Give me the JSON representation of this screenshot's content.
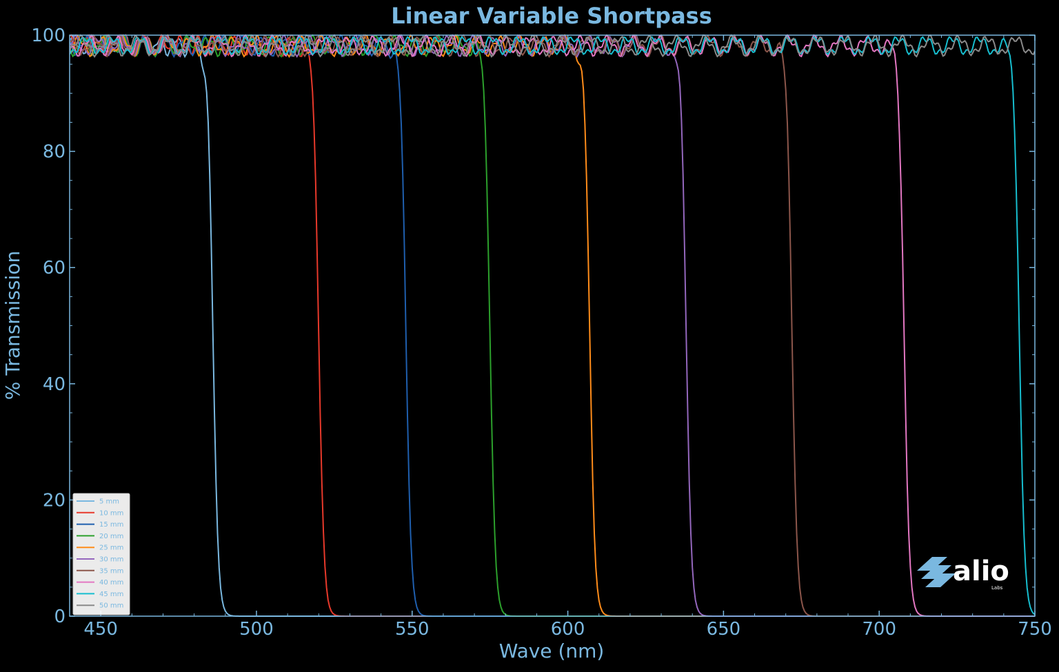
{
  "chart_data": {
    "type": "line",
    "title": "Linear Variable Shortpass",
    "xlabel": "Wave (nm)",
    "ylabel": "% Transmission",
    "xlim": [
      440,
      750
    ],
    "ylim": [
      0,
      100
    ],
    "xticks": [
      450,
      500,
      550,
      600,
      650,
      700,
      750
    ],
    "yticks": [
      0,
      20,
      40,
      60,
      80,
      100
    ],
    "legend_position": "lower-left",
    "grid": false,
    "series": [
      {
        "name": "5 mm",
        "color": "#7ab8e0",
        "edge_nm": 486,
        "last_nm": 750
      },
      {
        "name": "10 mm",
        "color": "#e8392b",
        "edge_nm": 520,
        "last_nm": 750
      },
      {
        "name": "15 mm",
        "color": "#1f5fae",
        "edge_nm": 548,
        "last_nm": 750
      },
      {
        "name": "20 mm",
        "color": "#2ca02c",
        "edge_nm": 575,
        "last_nm": 750
      },
      {
        "name": "25 mm",
        "color": "#ff8c1a",
        "edge_nm": 607,
        "last_nm": 750
      },
      {
        "name": "30 mm",
        "color": "#9467bd",
        "edge_nm": 638,
        "last_nm": 750
      },
      {
        "name": "35 mm",
        "color": "#8c564b",
        "edge_nm": 672,
        "last_nm": 750
      },
      {
        "name": "40 mm",
        "color": "#e377c2",
        "edge_nm": 708,
        "last_nm": 750
      },
      {
        "name": "45 mm",
        "color": "#17becf",
        "edge_nm": 745,
        "last_nm": 750
      },
      {
        "name": "50 mm",
        "color": "#8a8a8a",
        "edge_nm": 760,
        "last_nm": 750
      }
    ]
  },
  "logo": {
    "text": "alio",
    "subtext": "Labs"
  }
}
